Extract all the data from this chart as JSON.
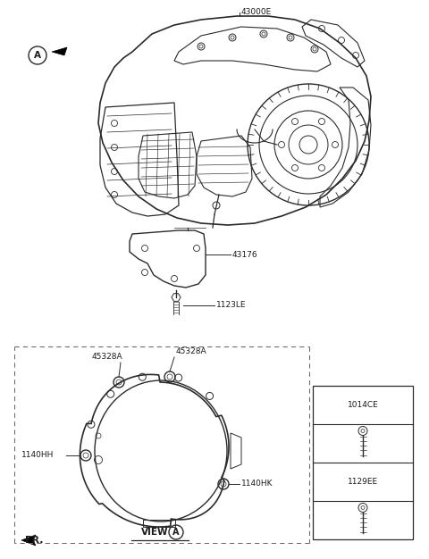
{
  "bg_color": "#ffffff",
  "line_color": "#2a2a2a",
  "label_font_size": 6.5,
  "figsize": [
    4.8,
    6.26
  ],
  "dpi": 100,
  "labels": {
    "part_main": "43000E",
    "part_bracket": "43176",
    "part_bolt": "1123LE",
    "cover_left": "45328A",
    "cover_top": "45328A",
    "bolt_hh": "1140HH",
    "bolt_hk": "1140HK",
    "ref1": "1014CE",
    "ref2": "1129EE",
    "view": "VIEW",
    "view_a": "A",
    "fr": "FR.",
    "circle_a": "A"
  }
}
